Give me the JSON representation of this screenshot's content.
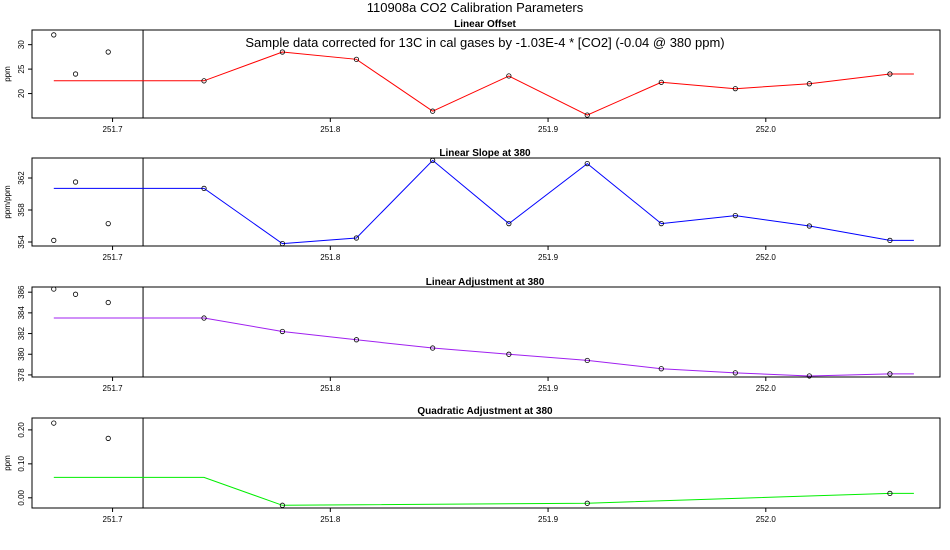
{
  "figure": {
    "title": "110908a   CO2 Calibration Parameters"
  },
  "chart_data": [
    {
      "type": "line",
      "title": "Linear Offset",
      "annotation": "Sample data corrected for 13C in cal gases by -1.03E-4 * [CO2] (-0.04 @ 380 ppm)",
      "xlabel": "",
      "ylabel": "ppm",
      "xlim": [
        251.663,
        252.08
      ],
      "ylim": [
        15,
        33
      ],
      "x_ticks": [
        251.7,
        251.8,
        251.9,
        252.0
      ],
      "x_tick_labels": [
        "251.7",
        "251.8",
        "251.9",
        "252.0"
      ],
      "y_ticks": [
        20,
        25,
        30
      ],
      "y_tick_labels": [
        "20",
        "25",
        "30"
      ],
      "vline_x": 251.714,
      "series": [
        {
          "color": "#ff0000",
          "x": [
            251.673,
            251.742,
            251.778,
            251.812,
            251.847,
            251.882,
            251.918,
            251.952,
            251.986,
            252.02,
            252.057,
            252.068
          ],
          "y": [
            22.6,
            22.6,
            28.5,
            27.0,
            16.4,
            23.6,
            15.6,
            22.3,
            21.0,
            22.0,
            24.0,
            24.0
          ],
          "markers": [
            false,
            true,
            true,
            true,
            true,
            true,
            true,
            true,
            true,
            true,
            true,
            false
          ]
        }
      ],
      "points": {
        "x": [
          251.673,
          251.683,
          251.698
        ],
        "y": [
          32.0,
          24.0,
          28.5
        ]
      }
    },
    {
      "type": "line",
      "title": "Linear Slope at 380",
      "xlabel": "",
      "ylabel": "ppm/ppm",
      "xlim": [
        251.663,
        252.08
      ],
      "ylim": [
        353.5,
        364.5
      ],
      "x_ticks": [
        251.7,
        251.8,
        251.9,
        252.0
      ],
      "x_tick_labels": [
        "251.7",
        "251.8",
        "251.9",
        "252.0"
      ],
      "y_ticks": [
        354,
        358,
        362
      ],
      "y_tick_labels": [
        "354",
        "358",
        "362"
      ],
      "vline_x": 251.714,
      "series": [
        {
          "color": "#0000ff",
          "x": [
            251.673,
            251.742,
            251.778,
            251.812,
            251.847,
            251.882,
            251.918,
            251.952,
            251.986,
            252.02,
            252.057,
            252.068
          ],
          "y": [
            360.7,
            360.7,
            353.8,
            354.5,
            364.2,
            356.3,
            363.8,
            356.3,
            357.3,
            356.0,
            354.2,
            354.2
          ],
          "markers": [
            false,
            true,
            true,
            true,
            true,
            true,
            true,
            true,
            true,
            true,
            true,
            false
          ]
        }
      ],
      "points": {
        "x": [
          251.673,
          251.683,
          251.698
        ],
        "y": [
          354.2,
          361.5,
          356.3
        ]
      }
    },
    {
      "type": "line",
      "title": "Linear Adjustment at 380",
      "xlabel": "",
      "ylabel": "",
      "xlim": [
        251.663,
        252.08
      ],
      "ylim": [
        377.8,
        386.5
      ],
      "x_ticks": [
        251.7,
        251.8,
        251.9,
        252.0
      ],
      "x_tick_labels": [
        "251.7",
        "251.8",
        "251.9",
        "252.0"
      ],
      "y_ticks": [
        378,
        380,
        382,
        384,
        386
      ],
      "y_tick_labels": [
        "378",
        "380",
        "382",
        "384",
        "386"
      ],
      "vline_x": 251.714,
      "series": [
        {
          "color": "#a020f0",
          "x": [
            251.673,
            251.742,
            251.778,
            251.812,
            251.847,
            251.882,
            251.918,
            251.952,
            251.986,
            252.02,
            252.057,
            252.068
          ],
          "y": [
            383.5,
            383.5,
            382.2,
            381.4,
            380.6,
            380.0,
            379.4,
            378.6,
            378.2,
            377.9,
            378.1,
            378.1
          ],
          "markers": [
            false,
            true,
            true,
            true,
            true,
            true,
            true,
            true,
            true,
            true,
            true,
            false
          ]
        }
      ],
      "points": {
        "x": [
          251.673,
          251.683,
          251.698
        ],
        "y": [
          386.3,
          385.8,
          385.0
        ]
      }
    },
    {
      "type": "line",
      "title": "Quadratic Adjustment at 380",
      "xlabel": "",
      "ylabel": "ppm",
      "xlim": [
        251.663,
        252.08
      ],
      "ylim": [
        -0.03,
        0.235
      ],
      "x_ticks": [
        251.7,
        251.8,
        251.9,
        252.0
      ],
      "x_tick_labels": [
        "251.7",
        "251.8",
        "251.9",
        "252.0"
      ],
      "y_ticks": [
        0.0,
        0.1,
        0.2
      ],
      "y_tick_labels": [
        "0.00",
        "0.10",
        "0.20"
      ],
      "vline_x": 251.714,
      "series": [
        {
          "color": "#00ee00",
          "x": [
            251.673,
            251.742,
            251.778,
            251.918,
            252.057,
            252.068
          ],
          "y": [
            0.06,
            0.06,
            -0.022,
            -0.016,
            0.013,
            0.013
          ],
          "markers": [
            false,
            false,
            true,
            true,
            true,
            false
          ]
        }
      ],
      "points": {
        "x": [
          251.673,
          251.698
        ],
        "y": [
          0.22,
          0.175
        ]
      }
    }
  ]
}
